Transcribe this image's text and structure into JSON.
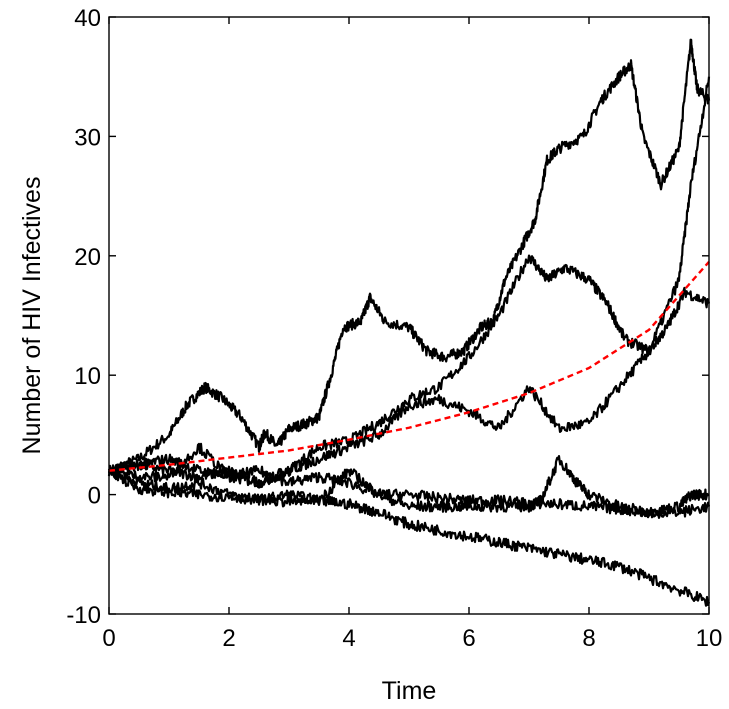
{
  "chart_data": {
    "type": "line",
    "title": "",
    "xlabel": "Time",
    "ylabel": "Number of HIV Infectives",
    "xlim": [
      0,
      10
    ],
    "ylim": [
      -10,
      40
    ],
    "xticks": [
      0,
      2,
      4,
      6,
      8,
      10
    ],
    "yticks": [
      -10,
      0,
      10,
      20,
      30,
      40
    ],
    "xtick_labels": [
      "0",
      "2",
      "4",
      "6",
      "8",
      "10"
    ],
    "ytick_labels": [
      "-10",
      "0",
      "10",
      "20",
      "30",
      "40"
    ],
    "grid": false,
    "legend": "none",
    "colors": {
      "paths": "#000000",
      "mean": "#ff0000"
    },
    "series": [
      {
        "style": "solid",
        "x": [
          0,
          0.5,
          1.0,
          1.3,
          1.6,
          1.9,
          2.2,
          2.5,
          2.6,
          2.8,
          3.0,
          3.3,
          3.5,
          3.7,
          3.9,
          4.2,
          4.35,
          4.6,
          5.0,
          5.3,
          5.6,
          5.9,
          6.2,
          6.4,
          6.6,
          6.9,
          7.1,
          7.3,
          7.5,
          7.9,
          8.2,
          8.5,
          8.7,
          8.9,
          9.2,
          9.5,
          9.7,
          9.8,
          10.0
        ],
        "y": [
          2,
          3,
          5,
          7.5,
          9,
          8,
          6.5,
          4,
          5.2,
          4,
          5.5,
          6,
          6.5,
          10,
          14,
          14.5,
          16.5,
          14.5,
          14,
          12,
          11.5,
          12,
          14,
          14.5,
          18,
          21,
          23,
          28,
          29,
          30,
          33,
          35,
          36,
          30,
          26,
          29,
          38,
          34,
          33
        ]
      },
      {
        "style": "solid",
        "x": [
          0,
          0.5,
          1.0,
          1.5,
          2.0,
          2.5,
          3.0,
          3.5,
          4.0,
          4.5,
          5.0,
          5.5,
          6.0,
          6.5,
          7.0,
          7.3,
          7.6,
          8.0,
          8.3,
          8.6,
          9.0,
          9.3,
          9.6,
          10.0
        ],
        "y": [
          2,
          2.5,
          2,
          1.5,
          2,
          1,
          2,
          4,
          4.5,
          6,
          8,
          9,
          11.5,
          15,
          20,
          18,
          19,
          18,
          16,
          13,
          12,
          14,
          17,
          16
        ]
      },
      {
        "style": "solid",
        "x": [
          0,
          0.5,
          1.0,
          1.5,
          2.0,
          2.5,
          3.0,
          3.5,
          4.0,
          4.5,
          5.0,
          5.5,
          6.0,
          6.5,
          7.0,
          7.5,
          8.0,
          8.5,
          9.0,
          9.5,
          9.7,
          10.0
        ],
        "y": [
          2,
          2.5,
          3,
          2,
          1.5,
          1,
          2,
          3,
          4,
          5,
          7.5,
          8,
          7,
          5.5,
          9,
          5.5,
          6,
          9,
          12,
          18,
          26,
          35
        ]
      },
      {
        "style": "solid",
        "x": [
          0,
          0.5,
          1.0,
          1.5,
          2.0,
          2.5,
          3.0,
          3.5,
          4.0,
          4.5,
          5.0,
          5.5,
          6.0,
          6.5,
          7.0,
          7.2,
          7.5,
          7.8,
          8.0,
          8.5,
          9.0,
          9.5,
          9.7,
          10.0
        ],
        "y": [
          2,
          1,
          0.5,
          1,
          0,
          -0.5,
          0,
          -0.5,
          2,
          0,
          -1,
          -1,
          -1,
          -1,
          -1,
          -0.5,
          3,
          1,
          0,
          -1,
          -1.5,
          -1,
          0,
          0
        ]
      },
      {
        "style": "solid",
        "x": [
          0,
          0.5,
          1.0,
          1.5,
          2.0,
          2.5,
          3.0,
          3.5,
          4.0,
          4.5,
          5.0,
          5.5,
          6.0,
          6.5,
          7.0,
          7.5,
          8.0,
          8.5,
          9.0,
          9.5,
          10.0
        ],
        "y": [
          2,
          1.5,
          1.5,
          4,
          1.5,
          2,
          1,
          1.5,
          1,
          0,
          0,
          -0.3,
          -0.5,
          -0.5,
          -0.7,
          -0.8,
          -1,
          -1.2,
          -1.5,
          -1.5,
          -1
        ]
      },
      {
        "style": "solid",
        "x": [
          0,
          0.5,
          1.0,
          1.5,
          2.0,
          2.5,
          3.0,
          3.5,
          4.0,
          4.5,
          5.0,
          5.5,
          6.0,
          6.5,
          7.0,
          7.5,
          8.0,
          8.5,
          9.0,
          9.5,
          10.0
        ],
        "y": [
          2,
          0.5,
          0.2,
          0,
          -0.2,
          -0.4,
          -0.6,
          -0.5,
          -0.8,
          -1.5,
          -2.5,
          -3,
          -3.5,
          -4,
          -4.5,
          -5,
          -5.5,
          -6,
          -7,
          -8,
          -9
        ]
      },
      {
        "style": "dashed",
        "x": [
          0,
          1,
          2,
          3,
          4,
          5,
          6,
          7,
          8,
          9,
          10
        ],
        "y": [
          2,
          2.5,
          3.1,
          3.7,
          4.6,
          5.6,
          6.9,
          8.5,
          10.6,
          13.8,
          19.5
        ]
      }
    ]
  }
}
